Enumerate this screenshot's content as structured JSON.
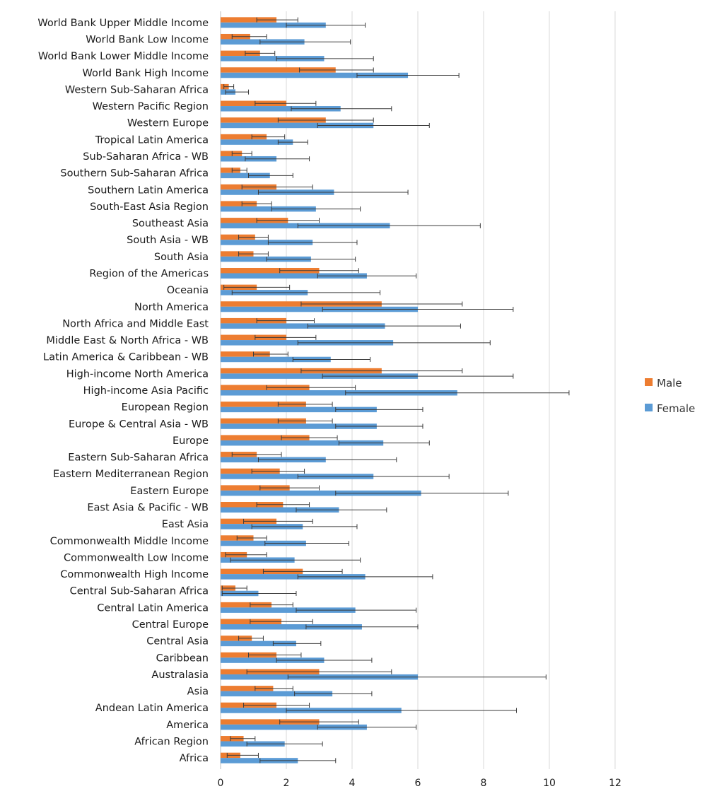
{
  "chart_data": {
    "type": "bar",
    "orientation": "horizontal",
    "title": "",
    "xlabel": "",
    "ylabel": "",
    "xlim": [
      0,
      12
    ],
    "xticks": [
      "0",
      "2",
      "4",
      "6",
      "8",
      "10",
      "12"
    ],
    "grid": "vertical",
    "legend_position": "right",
    "error_bars": true,
    "categories": [
      "World Bank Upper Middle Income",
      "World Bank Low Income",
      "World Bank Lower Middle Income",
      "World Bank High Income",
      "Western Sub-Saharan Africa",
      "Western Pacific Region",
      "Western Europe",
      "Tropical Latin America",
      "Sub-Saharan Africa - WB",
      "Southern Sub-Saharan Africa",
      "Southern Latin America",
      "South-East Asia Region",
      "Southeast Asia",
      "South Asia - WB",
      "South Asia",
      "Region of the Americas",
      "Oceania",
      "North America",
      "North Africa and Middle East",
      "Middle East & North Africa - WB",
      "Latin America & Caribbean - WB",
      "High-income North America",
      "High-income Asia Pacific",
      "European Region",
      "Europe & Central Asia - WB",
      "Europe",
      "Eastern Sub-Saharan Africa",
      "Eastern Mediterranean Region",
      "Eastern Europe",
      "East Asia & Pacific - WB",
      "East Asia",
      "Commonwealth Middle Income",
      "Commonwealth Low Income",
      "Commonwealth High Income",
      "Central Sub-Saharan Africa",
      "Central Latin America",
      "Central Europe",
      "Central Asia",
      "Caribbean",
      "Australasia",
      "Asia",
      "Andean Latin America",
      "America",
      "African Region",
      "Africa"
    ],
    "series": [
      {
        "name": "Male",
        "color": "#ed7d31",
        "values": [
          1.7,
          0.9,
          1.2,
          3.5,
          0.25,
          2.0,
          3.2,
          1.4,
          0.65,
          0.6,
          1.7,
          1.1,
          2.05,
          1.05,
          1.0,
          3.0,
          1.1,
          4.9,
          2.0,
          2.0,
          1.5,
          4.9,
          2.7,
          2.6,
          2.6,
          2.7,
          1.1,
          1.8,
          2.1,
          1.9,
          1.7,
          1.0,
          0.8,
          2.5,
          0.45,
          1.55,
          1.85,
          0.95,
          1.7,
          3.0,
          1.6,
          1.7,
          3.0,
          0.7,
          0.6
        ],
        "err_low": [
          1.1,
          0.35,
          0.75,
          2.4,
          0.1,
          1.05,
          1.75,
          0.95,
          0.35,
          0.35,
          0.65,
          0.65,
          1.1,
          0.55,
          0.55,
          1.8,
          0.1,
          2.45,
          1.1,
          1.05,
          1.0,
          2.45,
          1.4,
          1.75,
          1.75,
          1.85,
          0.35,
          0.95,
          1.2,
          1.1,
          0.7,
          0.5,
          0.15,
          1.3,
          0.05,
          0.9,
          0.9,
          0.55,
          0.85,
          0.8,
          1.05,
          0.7,
          1.8,
          0.3,
          0.2
        ],
        "err_high": [
          2.35,
          1.4,
          1.65,
          4.65,
          0.4,
          2.9,
          4.65,
          1.95,
          0.95,
          0.8,
          2.8,
          1.55,
          3.0,
          1.45,
          1.45,
          4.2,
          2.1,
          7.35,
          2.85,
          2.9,
          2.05,
          7.35,
          4.1,
          3.4,
          3.4,
          3.55,
          1.85,
          2.55,
          3.0,
          2.7,
          2.8,
          1.4,
          1.4,
          3.7,
          0.8,
          2.2,
          2.8,
          1.3,
          2.45,
          5.2,
          2.2,
          2.7,
          4.2,
          1.05,
          1.15
        ]
      },
      {
        "name": "Female",
        "color": "#5b9bd5",
        "values": [
          3.2,
          2.55,
          3.15,
          5.7,
          0.45,
          3.65,
          4.65,
          2.2,
          1.7,
          1.5,
          3.45,
          2.9,
          5.15,
          2.8,
          2.75,
          4.45,
          2.65,
          6.0,
          5.0,
          5.25,
          3.35,
          6.0,
          7.2,
          4.75,
          4.75,
          4.95,
          3.2,
          4.65,
          6.1,
          3.6,
          2.5,
          2.6,
          2.25,
          4.4,
          1.15,
          4.1,
          4.3,
          2.3,
          3.15,
          6.0,
          3.4,
          5.5,
          4.45,
          1.95,
          2.35
        ]
      }
    ],
    "female_err_low": [
      2.0,
      1.2,
      1.7,
      4.15,
      0.15,
      2.15,
      2.95,
      1.75,
      0.75,
      0.85,
      1.15,
      1.55,
      2.35,
      1.45,
      1.4,
      2.95,
      0.35,
      3.1,
      2.65,
      2.35,
      2.2,
      3.1,
      3.8,
      3.5,
      3.5,
      3.6,
      1.15,
      2.35,
      3.5,
      2.3,
      0.95,
      1.35,
      0.3,
      2.35,
      0.05,
      2.3,
      2.6,
      1.6,
      1.7,
      2.05,
      2.25,
      2.0,
      2.95,
      0.8,
      1.2
    ],
    "female_err_high": [
      4.4,
      3.95,
      4.65,
      7.25,
      0.85,
      5.2,
      6.35,
      2.65,
      2.7,
      2.2,
      5.7,
      4.25,
      7.9,
      4.15,
      4.1,
      5.95,
      4.85,
      8.9,
      7.3,
      8.2,
      4.55,
      8.9,
      10.6,
      6.15,
      6.15,
      6.35,
      5.35,
      6.95,
      8.75,
      5.05,
      4.15,
      3.9,
      4.25,
      6.45,
      2.3,
      5.95,
      6.0,
      3.05,
      4.6,
      9.9,
      4.6,
      9.0,
      5.95,
      3.1,
      3.5
    ]
  }
}
